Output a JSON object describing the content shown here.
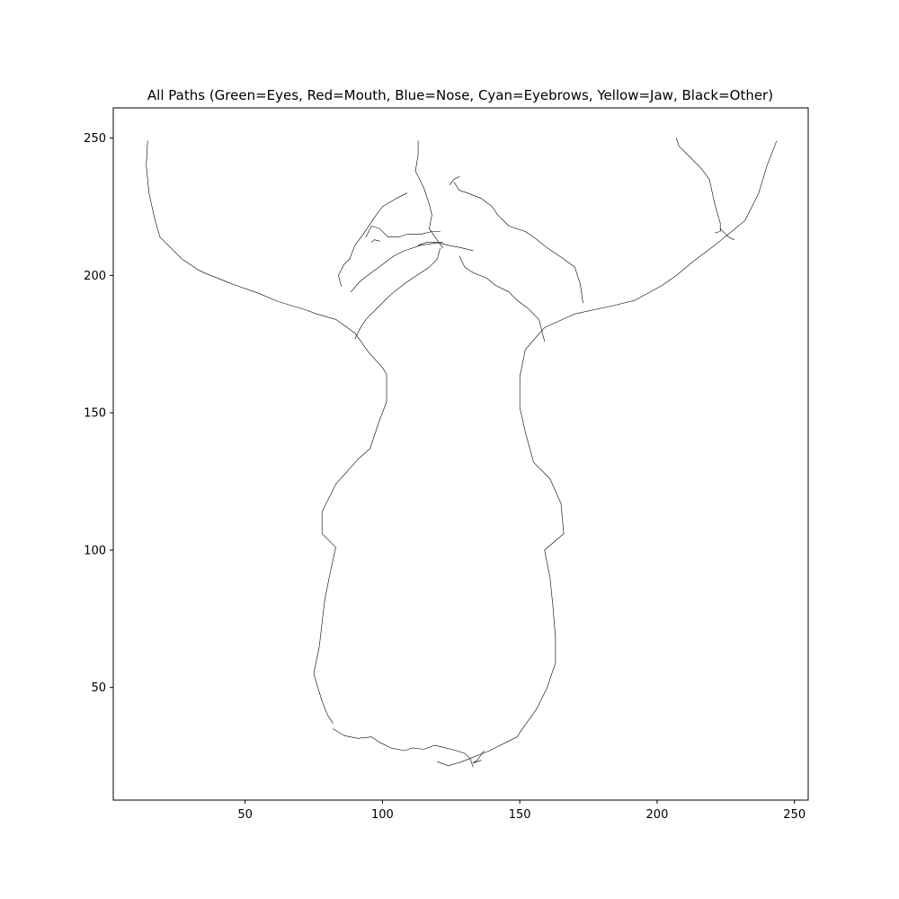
{
  "chart_data": {
    "type": "line",
    "title": "All Paths (Green=Eyes, Red=Mouth, Blue=Nose, Cyan=Eyebrows, Yellow=Jaw, Black=Other)",
    "xlabel": "",
    "ylabel": "",
    "xlim": [
      2,
      255
    ],
    "ylim": [
      9,
      261
    ],
    "xticks": [
      50,
      100,
      150,
      200,
      250
    ],
    "yticks": [
      50,
      100,
      150,
      200,
      250
    ],
    "grid": false,
    "colors": {
      "line": "#000000",
      "frame": "#000000",
      "background": "#ffffff"
    },
    "series": [
      {
        "values": [
          [
            14.5,
            249
          ],
          [
            14,
            240
          ],
          [
            15,
            230
          ],
          [
            17,
            221
          ],
          [
            19,
            214
          ],
          [
            20,
            213
          ],
          [
            27,
            206
          ],
          [
            33,
            202
          ],
          [
            35,
            201
          ],
          [
            45,
            197
          ],
          [
            55,
            193.5
          ],
          [
            62,
            190.5
          ],
          [
            72,
            187.5
          ],
          [
            76,
            186
          ],
          [
            83,
            184
          ],
          [
            90,
            179
          ],
          [
            95,
            172
          ],
          [
            100,
            166.5
          ],
          [
            101.5,
            164
          ],
          [
            101.5,
            160
          ],
          [
            101.5,
            154
          ],
          [
            98.5,
            146
          ],
          [
            95.5,
            137
          ],
          [
            91,
            133
          ],
          [
            83,
            124
          ],
          [
            78,
            114
          ],
          [
            78,
            106
          ],
          [
            83,
            101
          ],
          [
            81,
            92
          ],
          [
            79,
            82
          ],
          [
            77,
            65
          ],
          [
            75,
            55
          ],
          [
            78,
            45
          ],
          [
            80,
            40
          ],
          [
            82,
            37
          ]
        ]
      },
      {
        "values": [
          [
            243.5,
            249
          ],
          [
            240,
            240
          ],
          [
            237,
            230
          ],
          [
            232,
            220
          ],
          [
            221,
            211
          ],
          [
            213,
            205
          ],
          [
            207,
            200
          ],
          [
            202,
            196.5
          ],
          [
            192,
            191
          ],
          [
            184,
            189
          ],
          [
            170,
            186
          ],
          [
            159,
            181
          ],
          [
            152,
            173
          ],
          [
            150,
            163
          ],
          [
            150,
            152
          ],
          [
            152,
            143
          ],
          [
            155,
            132
          ],
          [
            161,
            126
          ],
          [
            165,
            117
          ],
          [
            166,
            106
          ],
          [
            159,
            100
          ],
          [
            161,
            90
          ],
          [
            162,
            80
          ],
          [
            163,
            68
          ],
          [
            163,
            59
          ],
          [
            160,
            50
          ],
          [
            156,
            42
          ],
          [
            151,
            35
          ],
          [
            149,
            32
          ],
          [
            139,
            27
          ],
          [
            129,
            23
          ],
          [
            124,
            21.5
          ],
          [
            120,
            23
          ]
        ]
      },
      {
        "values": [
          [
            82,
            35
          ],
          [
            86,
            32.5
          ],
          [
            91,
            31.5
          ],
          [
            96,
            32
          ],
          [
            99,
            30
          ],
          [
            103,
            28
          ],
          [
            108,
            27
          ],
          [
            111,
            28
          ],
          [
            115,
            27.5
          ],
          [
            119,
            29
          ],
          [
            123,
            28
          ],
          [
            127,
            27
          ],
          [
            130,
            26
          ],
          [
            132,
            24
          ],
          [
            133,
            21
          ]
        ]
      },
      {
        "values": [
          [
            137,
            27
          ],
          [
            134.5,
            23.5
          ],
          [
            133,
            22.5
          ],
          [
            136,
            23.5
          ]
        ]
      },
      {
        "values": [
          [
            113,
            249
          ],
          [
            113,
            244
          ],
          [
            112,
            238
          ],
          [
            115,
            232
          ],
          [
            117,
            226
          ],
          [
            118,
            222
          ],
          [
            117,
            217
          ],
          [
            122,
            210
          ]
        ]
      },
      {
        "values": [
          [
            124.5,
            233
          ],
          [
            126,
            235
          ],
          [
            128,
            236
          ]
        ]
      },
      {
        "values": [
          [
            126,
            234
          ],
          [
            128,
            231
          ],
          [
            131,
            230
          ],
          [
            136,
            228
          ],
          [
            140,
            225
          ],
          [
            142,
            222
          ],
          [
            146,
            218
          ],
          [
            152,
            216
          ],
          [
            155,
            214
          ],
          [
            160,
            210
          ],
          [
            166,
            206
          ],
          [
            170,
            203
          ],
          [
            172,
            197
          ],
          [
            173,
            190
          ]
        ]
      },
      {
        "values": [
          [
            109,
            230
          ],
          [
            105,
            228
          ],
          [
            100,
            225
          ],
          [
            97,
            221
          ],
          [
            93,
            215
          ],
          [
            90,
            211
          ],
          [
            88,
            206
          ],
          [
            86,
            204
          ],
          [
            84,
            200
          ],
          [
            85,
            196
          ]
        ]
      },
      {
        "values": [
          [
            88.5,
            194
          ],
          [
            92,
            198
          ],
          [
            96,
            201
          ],
          [
            100,
            204
          ],
          [
            104,
            207
          ],
          [
            108,
            209
          ],
          [
            114,
            211
          ],
          [
            121,
            212
          ],
          [
            122,
            212
          ]
        ]
      },
      {
        "values": [
          [
            94,
            214
          ],
          [
            96,
            218
          ],
          [
            99,
            217
          ],
          [
            102,
            214
          ],
          [
            106,
            214
          ],
          [
            109,
            215
          ],
          [
            114,
            215
          ],
          [
            118,
            216
          ],
          [
            121,
            216
          ]
        ]
      },
      {
        "values": [
          [
            96,
            212
          ],
          [
            97,
            213
          ],
          [
            99,
            212.5
          ]
        ]
      },
      {
        "values": [
          [
            113,
            211
          ],
          [
            116,
            212
          ],
          [
            120,
            212
          ],
          [
            124,
            211
          ],
          [
            129,
            210
          ],
          [
            133,
            209
          ]
        ]
      },
      {
        "values": [
          [
            121,
            210
          ],
          [
            120,
            206
          ],
          [
            117,
            203
          ],
          [
            111,
            199
          ],
          [
            108,
            197
          ],
          [
            103,
            193
          ],
          [
            99,
            189
          ],
          [
            94,
            184
          ],
          [
            92,
            181
          ],
          [
            90,
            177
          ]
        ]
      },
      {
        "values": [
          [
            128,
            207
          ],
          [
            130,
            203
          ],
          [
            133,
            201
          ],
          [
            138,
            199
          ],
          [
            141,
            196.5
          ],
          [
            146,
            194
          ],
          [
            149,
            191
          ],
          [
            153,
            188
          ],
          [
            157,
            184
          ],
          [
            159,
            176
          ]
        ]
      },
      {
        "values": [
          [
            207,
            250
          ],
          [
            208,
            247
          ],
          [
            211,
            244
          ],
          [
            216,
            239
          ],
          [
            219,
            235
          ],
          [
            221,
            226
          ],
          [
            223,
            219
          ],
          [
            223,
            216
          ],
          [
            221,
            215.5
          ]
        ]
      },
      {
        "values": [
          [
            223,
            217
          ],
          [
            226,
            214
          ],
          [
            228,
            213
          ]
        ]
      }
    ]
  }
}
